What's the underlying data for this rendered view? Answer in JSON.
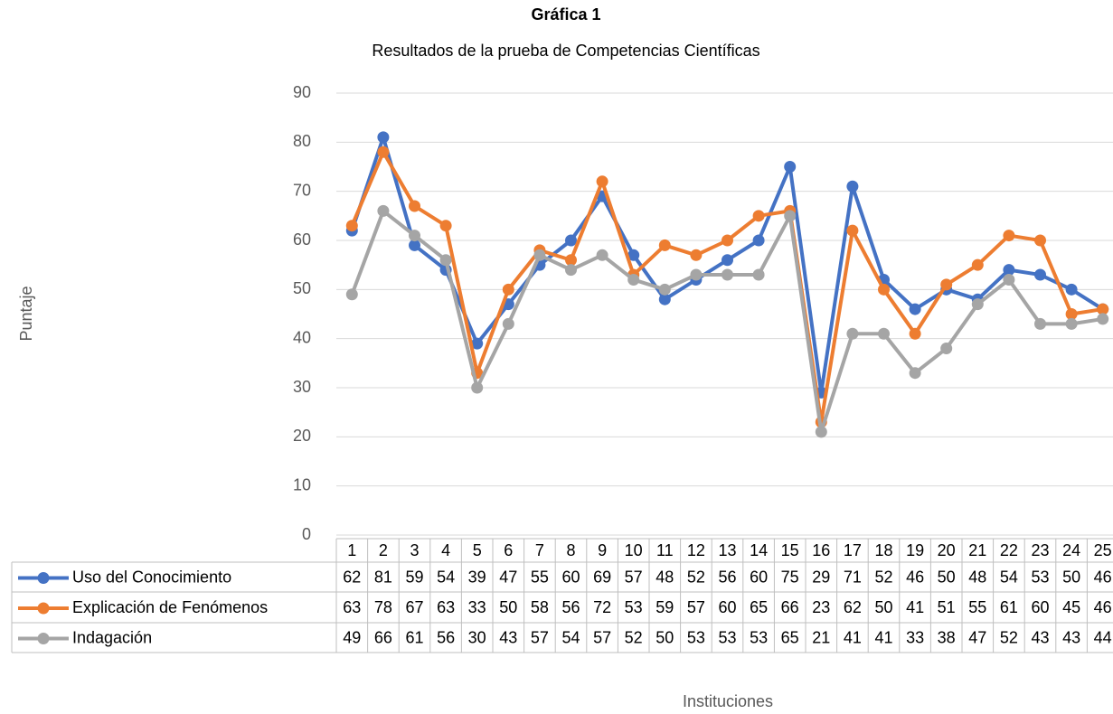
{
  "chart_data": {
    "type": "line",
    "title": "Gráfica 1",
    "subtitle": "Resultados de la prueba de Competencias Científicas",
    "y_label": "Puntaje",
    "x_label": "Instituciones",
    "categories": [
      "1",
      "2",
      "3",
      "4",
      "5",
      "6",
      "7",
      "8",
      "9",
      "10",
      "11",
      "12",
      "13",
      "14",
      "15",
      "16",
      "17",
      "18",
      "19",
      "20",
      "21",
      "22",
      "23",
      "24",
      "25"
    ],
    "series": [
      {
        "name": "Uso del Conocimiento",
        "color": "#4472c4",
        "values": [
          62,
          81,
          59,
          54,
          39,
          47,
          55,
          60,
          69,
          57,
          48,
          52,
          56,
          60,
          75,
          29,
          71,
          52,
          46,
          50,
          48,
          54,
          53,
          50,
          46
        ]
      },
      {
        "name": "Explicación de Fenómenos",
        "color": "#ed7d31",
        "values": [
          63,
          78,
          67,
          63,
          33,
          50,
          58,
          56,
          72,
          53,
          59,
          57,
          60,
          65,
          66,
          23,
          62,
          50,
          41,
          51,
          55,
          61,
          60,
          45,
          46
        ]
      },
      {
        "name": "Indagación",
        "color": "#a5a5a5",
        "values": [
          49,
          66,
          61,
          56,
          30,
          43,
          57,
          54,
          57,
          52,
          50,
          53,
          53,
          53,
          65,
          21,
          41,
          41,
          33,
          38,
          47,
          52,
          43,
          43,
          44
        ]
      }
    ],
    "ylim": [
      0,
      90
    ],
    "yticks": [
      0,
      10,
      20,
      30,
      40,
      50,
      60,
      70,
      80,
      90
    ],
    "grid": true
  }
}
